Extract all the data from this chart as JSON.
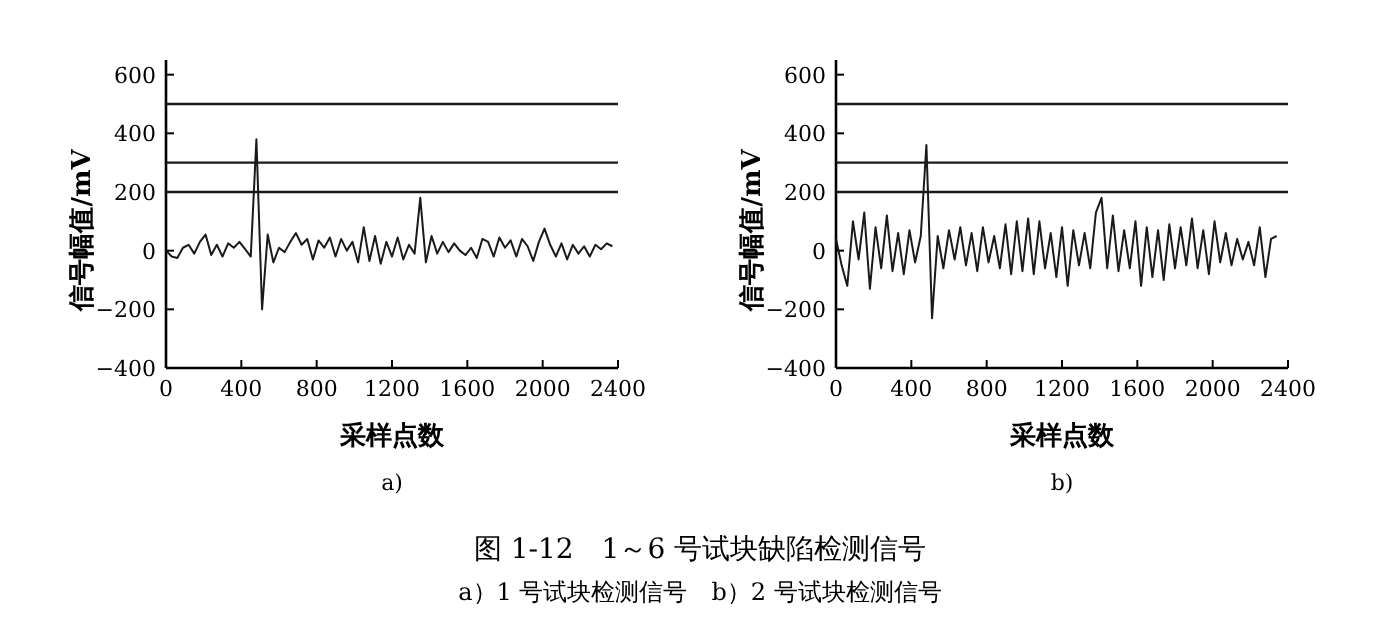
{
  "chart_data": [
    {
      "type": "line",
      "xlabel": "采样点数",
      "ylabel": "信号幅值/mV",
      "xlim": [
        0,
        2400
      ],
      "ylim": [
        -400,
        650
      ],
      "xticks": [
        0,
        400,
        800,
        1200,
        1600,
        2000,
        2400
      ],
      "yticks": [
        -400,
        -200,
        0,
        200,
        400,
        600
      ],
      "ref_lines": [
        {
          "axis": "y",
          "value": 500,
          "color": "#1a1a1a"
        },
        {
          "axis": "y",
          "value": 300,
          "color": "#1a1a1a"
        },
        {
          "axis": "y",
          "value": 200,
          "color": "#1a1a1a"
        }
      ],
      "annotations": [
        "a)"
      ],
      "series": [
        {
          "color": "#1a1a1a",
          "x": [
            0,
            30,
            60,
            90,
            120,
            150,
            180,
            210,
            240,
            270,
            300,
            330,
            360,
            390,
            420,
            450,
            480,
            510,
            540,
            570,
            600,
            630,
            660,
            690,
            720,
            750,
            780,
            810,
            840,
            870,
            900,
            930,
            960,
            990,
            1020,
            1050,
            1080,
            1110,
            1140,
            1170,
            1200,
            1230,
            1260,
            1290,
            1320,
            1350,
            1380,
            1410,
            1440,
            1470,
            1500,
            1530,
            1560,
            1590,
            1620,
            1650,
            1680,
            1710,
            1740,
            1770,
            1800,
            1830,
            1860,
            1890,
            1920,
            1950,
            1980,
            2010,
            2040,
            2070,
            2100,
            2130,
            2160,
            2190,
            2220,
            2250,
            2280,
            2310,
            2340,
            2370
          ],
          "values": [
            0,
            -20,
            -25,
            10,
            20,
            -10,
            30,
            55,
            -15,
            20,
            -20,
            25,
            10,
            30,
            5,
            -20,
            380,
            -200,
            55,
            -40,
            10,
            -5,
            30,
            60,
            20,
            40,
            -30,
            35,
            10,
            45,
            -20,
            40,
            0,
            30,
            -40,
            80,
            -35,
            50,
            -45,
            30,
            -20,
            45,
            -30,
            20,
            -10,
            180,
            -40,
            50,
            -10,
            30,
            -5,
            25,
            0,
            -15,
            10,
            -25,
            40,
            30,
            -20,
            45,
            10,
            35,
            -20,
            40,
            15,
            -35,
            30,
            75,
            20,
            -20,
            25,
            -30,
            20,
            -10,
            15,
            -20,
            20,
            5,
            25,
            15
          ]
        }
      ]
    },
    {
      "type": "line",
      "xlabel": "采样点数",
      "ylabel": "信号幅值/mV",
      "xlim": [
        0,
        2400
      ],
      "ylim": [
        -400,
        650
      ],
      "xticks": [
        0,
        400,
        800,
        1200,
        1600,
        2000,
        2400
      ],
      "yticks": [
        -400,
        -200,
        0,
        200,
        400,
        600
      ],
      "ref_lines": [
        {
          "axis": "y",
          "value": 500,
          "color": "#1a1a1a"
        },
        {
          "axis": "y",
          "value": 300,
          "color": "#1a1a1a"
        },
        {
          "axis": "y",
          "value": 200,
          "color": "#1a1a1a"
        }
      ],
      "annotations": [
        "b)",
        "图 1-12　1～6 号试块缺陷检测信号",
        "a）1 号试块检测信号　b）2 号试块检测信号"
      ],
      "series": [
        {
          "color": "#1a1a1a",
          "x": [
            0,
            30,
            60,
            90,
            120,
            150,
            180,
            210,
            240,
            270,
            300,
            330,
            360,
            390,
            420,
            450,
            480,
            510,
            540,
            570,
            600,
            630,
            660,
            690,
            720,
            750,
            780,
            810,
            840,
            870,
            900,
            930,
            960,
            990,
            1020,
            1050,
            1080,
            1110,
            1140,
            1170,
            1200,
            1230,
            1260,
            1290,
            1320,
            1350,
            1380,
            1410,
            1440,
            1470,
            1500,
            1530,
            1560,
            1590,
            1620,
            1650,
            1680,
            1710,
            1740,
            1770,
            1800,
            1830,
            1860,
            1890,
            1920,
            1950,
            1980,
            2010,
            2040,
            2070,
            2100,
            2130,
            2160,
            2190,
            2220,
            2250,
            2280,
            2310,
            2340
          ],
          "values": [
            40,
            -50,
            -120,
            100,
            -30,
            130,
            -130,
            80,
            -60,
            120,
            -70,
            60,
            -80,
            70,
            -40,
            50,
            360,
            -230,
            50,
            -60,
            70,
            -30,
            80,
            -50,
            60,
            -70,
            80,
            -40,
            50,
            -60,
            90,
            -80,
            100,
            -70,
            110,
            -80,
            100,
            -60,
            60,
            -90,
            80,
            -120,
            70,
            -50,
            60,
            -60,
            130,
            180,
            -60,
            120,
            -70,
            70,
            -60,
            100,
            -120,
            80,
            -90,
            70,
            -100,
            90,
            -60,
            80,
            -50,
            110,
            -60,
            70,
            -80,
            100,
            -40,
            60,
            -50,
            40,
            -30,
            30,
            -50,
            80,
            -90,
            40,
            50
          ]
        }
      ]
    }
  ]
}
